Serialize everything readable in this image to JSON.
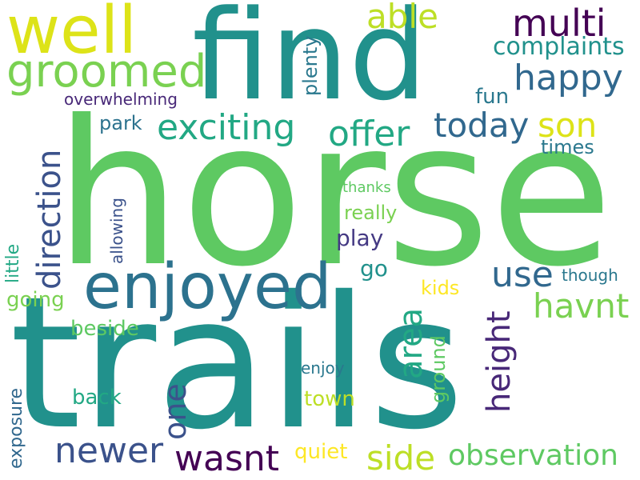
{
  "words": [
    {
      "text": "horse",
      "color": "#5ec962",
      "vertical": false
    },
    {
      "text": "trails",
      "color": "#21918c",
      "vertical": false
    },
    {
      "text": "find",
      "color": "#21918c",
      "vertical": false
    },
    {
      "text": "well",
      "color": "#dde318",
      "vertical": false
    },
    {
      "text": "enjoyed",
      "color": "#2c728e",
      "vertical": false
    },
    {
      "text": "groomed",
      "color": "#7ad151",
      "vertical": false
    },
    {
      "text": "exciting",
      "color": "#22a884",
      "vertical": false
    },
    {
      "text": "multi",
      "color": "#440154",
      "vertical": false
    },
    {
      "text": "happy",
      "color": "#31688e",
      "vertical": false
    },
    {
      "text": "able",
      "color": "#bddf26",
      "vertical": false
    },
    {
      "text": "today",
      "color": "#31688e",
      "vertical": false
    },
    {
      "text": "offer",
      "color": "#22a884",
      "vertical": false
    },
    {
      "text": "son",
      "color": "#dde318",
      "vertical": false
    },
    {
      "text": "complaints",
      "color": "#21918c",
      "vertical": false
    },
    {
      "text": "havnt",
      "color": "#7ad151",
      "vertical": false
    },
    {
      "text": "use",
      "color": "#31688e",
      "vertical": false
    },
    {
      "text": "newer",
      "color": "#3b528b",
      "vertical": false
    },
    {
      "text": "wasnt",
      "color": "#440154",
      "vertical": false
    },
    {
      "text": "side",
      "color": "#bddf26",
      "vertical": false
    },
    {
      "text": "observation",
      "color": "#5ec962",
      "vertical": false
    },
    {
      "text": "direction",
      "color": "#3b528b",
      "vertical": true
    },
    {
      "text": "height",
      "color": "#482878",
      "vertical": true
    },
    {
      "text": "area",
      "color": "#22a884",
      "vertical": true
    },
    {
      "text": "one",
      "color": "#3b528b",
      "vertical": true
    },
    {
      "text": "plenty",
      "color": "#2a788e",
      "vertical": true
    },
    {
      "text": "little",
      "color": "#22a884",
      "vertical": true
    },
    {
      "text": "allowing",
      "color": "#3b528b",
      "vertical": true
    },
    {
      "text": "ground",
      "color": "#5ec962",
      "vertical": true
    },
    {
      "text": "exposure",
      "color": "#31688e",
      "vertical": true
    },
    {
      "text": "overwhelming",
      "color": "#482878",
      "vertical": false
    },
    {
      "text": "fun",
      "color": "#2a788e",
      "vertical": false
    },
    {
      "text": "park",
      "color": "#2c728e",
      "vertical": false
    },
    {
      "text": "times",
      "color": "#2a788e",
      "vertical": false
    },
    {
      "text": "thanks",
      "color": "#5ec962",
      "vertical": false
    },
    {
      "text": "really",
      "color": "#7ad151",
      "vertical": false
    },
    {
      "text": "play",
      "color": "#443983",
      "vertical": false
    },
    {
      "text": "go",
      "color": "#21918c",
      "vertical": false
    },
    {
      "text": "going",
      "color": "#7ad151",
      "vertical": false
    },
    {
      "text": "kids",
      "color": "#fde725",
      "vertical": false
    },
    {
      "text": "though",
      "color": "#2a788e",
      "vertical": false
    },
    {
      "text": "beside",
      "color": "#5ec962",
      "vertical": false
    },
    {
      "text": "back",
      "color": "#22a884",
      "vertical": false
    },
    {
      "text": "town",
      "color": "#bddf26",
      "vertical": false
    },
    {
      "text": "enjoy",
      "color": "#2a788e",
      "vertical": false
    },
    {
      "text": "quiet",
      "color": "#fde725",
      "vertical": false
    }
  ]
}
